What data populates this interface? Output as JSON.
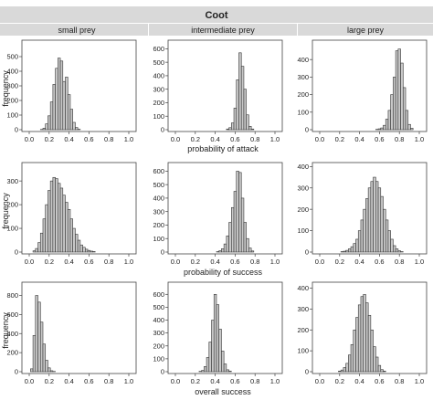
{
  "figure": {
    "title": "Coot",
    "column_labels": [
      "small prey",
      "intermediate prey",
      "large prey"
    ],
    "row_labels": [
      "probability of attack",
      "probability of success",
      "overall success"
    ],
    "ylabel": "frequency",
    "colors": {
      "strip": "#d9d9d9",
      "bar": "#c8c8c8",
      "bar_edge": "#333333",
      "axis": "#444444"
    },
    "grid": false
  },
  "chart_data": [
    {
      "type": "bar",
      "panel": "small prey / probability of attack",
      "xlim": [
        0,
        1
      ],
      "ylim": [
        0,
        600
      ],
      "xticks": [
        0.0,
        0.2,
        0.4,
        0.6,
        0.8,
        1.0
      ],
      "yticks": [
        0,
        100,
        200,
        300,
        400,
        500
      ],
      "bin_width": 0.025,
      "x": [
        0.125,
        0.15,
        0.175,
        0.2,
        0.225,
        0.25,
        0.275,
        0.3,
        0.325,
        0.35,
        0.375,
        0.4,
        0.425,
        0.45,
        0.475,
        0.5
      ],
      "values": [
        2,
        10,
        40,
        95,
        190,
        310,
        420,
        490,
        470,
        330,
        360,
        240,
        140,
        50,
        15,
        3
      ]
    },
    {
      "type": "bar",
      "panel": "intermediate prey / probability of attack",
      "xlim": [
        0,
        1
      ],
      "ylim": [
        0,
        650
      ],
      "xticks": [
        0.0,
        0.2,
        0.4,
        0.6,
        0.8,
        1.0
      ],
      "yticks": [
        0,
        100,
        200,
        300,
        400,
        500,
        600
      ],
      "bin_width": 0.025,
      "x": [
        0.525,
        0.55,
        0.575,
        0.6,
        0.625,
        0.65,
        0.675,
        0.7,
        0.725,
        0.75,
        0.775
      ],
      "values": [
        5,
        15,
        50,
        160,
        370,
        570,
        470,
        300,
        110,
        25,
        5
      ]
    },
    {
      "type": "bar",
      "panel": "large prey / probability of attack",
      "xlim": [
        0,
        1
      ],
      "ylim": [
        0,
        500
      ],
      "xticks": [
        0.0,
        0.2,
        0.4,
        0.6,
        0.8,
        1.0
      ],
      "yticks": [
        0,
        100,
        200,
        300,
        400
      ],
      "bin_width": 0.025,
      "x": [
        0.575,
        0.6,
        0.625,
        0.65,
        0.675,
        0.7,
        0.725,
        0.75,
        0.775,
        0.8,
        0.825,
        0.85,
        0.875,
        0.9,
        0.925
      ],
      "values": [
        2,
        5,
        10,
        25,
        60,
        110,
        200,
        300,
        450,
        460,
        380,
        240,
        110,
        30,
        8
      ]
    },
    {
      "type": "bar",
      "panel": "small prey / probability of success",
      "xlim": [
        0,
        1
      ],
      "ylim": [
        0,
        370
      ],
      "xticks": [
        0.0,
        0.2,
        0.4,
        0.6,
        0.8,
        1.0
      ],
      "yticks": [
        0,
        100,
        200,
        300
      ],
      "bin_width": 0.025,
      "x": [
        0.05,
        0.075,
        0.1,
        0.125,
        0.15,
        0.175,
        0.2,
        0.225,
        0.25,
        0.275,
        0.3,
        0.325,
        0.35,
        0.375,
        0.4,
        0.425,
        0.45,
        0.475,
        0.5,
        0.525,
        0.55,
        0.575,
        0.6,
        0.625,
        0.65
      ],
      "values": [
        5,
        15,
        40,
        80,
        140,
        200,
        260,
        300,
        315,
        310,
        290,
        270,
        240,
        210,
        180,
        140,
        100,
        75,
        50,
        30,
        20,
        12,
        7,
        4,
        2
      ]
    },
    {
      "type": "bar",
      "panel": "intermediate prey / probability of success",
      "xlim": [
        0,
        1
      ],
      "ylim": [
        0,
        650
      ],
      "xticks": [
        0.0,
        0.2,
        0.4,
        0.6,
        0.8,
        1.0
      ],
      "yticks": [
        0,
        100,
        200,
        300,
        400,
        500,
        600
      ],
      "bin_width": 0.025,
      "x": [
        0.425,
        0.45,
        0.475,
        0.5,
        0.525,
        0.55,
        0.575,
        0.6,
        0.625,
        0.65,
        0.675,
        0.7,
        0.725,
        0.75,
        0.775
      ],
      "values": [
        3,
        10,
        25,
        60,
        120,
        220,
        330,
        450,
        600,
        590,
        400,
        220,
        100,
        30,
        8
      ]
    },
    {
      "type": "bar",
      "panel": "large prey / probability of success",
      "xlim": [
        0,
        1
      ],
      "ylim": [
        0,
        410
      ],
      "xticks": [
        0.0,
        0.2,
        0.4,
        0.6,
        0.8,
        1.0
      ],
      "yticks": [
        0,
        100,
        200,
        300,
        400
      ],
      "bin_width": 0.025,
      "x": [
        0.225,
        0.25,
        0.275,
        0.3,
        0.325,
        0.35,
        0.375,
        0.4,
        0.425,
        0.45,
        0.475,
        0.5,
        0.525,
        0.55,
        0.575,
        0.6,
        0.625,
        0.65,
        0.675,
        0.7,
        0.725,
        0.75,
        0.775,
        0.8,
        0.825
      ],
      "values": [
        2,
        4,
        8,
        15,
        25,
        40,
        60,
        100,
        150,
        200,
        250,
        300,
        330,
        350,
        330,
        300,
        260,
        200,
        150,
        100,
        60,
        30,
        15,
        6,
        2
      ]
    },
    {
      "type": "bar",
      "panel": "small prey / overall success",
      "xlim": [
        0,
        1
      ],
      "ylim": [
        0,
        920
      ],
      "xticks": [
        0.0,
        0.2,
        0.4,
        0.6,
        0.8,
        1.0
      ],
      "yticks": [
        0,
        200,
        400,
        600,
        800
      ],
      "bin_width": 0.025,
      "x": [
        0.025,
        0.05,
        0.075,
        0.1,
        0.125,
        0.15,
        0.175,
        0.2,
        0.225,
        0.25
      ],
      "values": [
        30,
        380,
        800,
        730,
        520,
        290,
        120,
        40,
        10,
        3
      ]
    },
    {
      "type": "bar",
      "panel": "intermediate prey / overall success",
      "xlim": [
        0,
        1
      ],
      "ylim": [
        0,
        680
      ],
      "xticks": [
        0.0,
        0.2,
        0.4,
        0.6,
        0.8,
        1.0
      ],
      "yticks": [
        0,
        100,
        200,
        300,
        400,
        500,
        600
      ],
      "bin_width": 0.025,
      "x": [
        0.25,
        0.275,
        0.3,
        0.325,
        0.35,
        0.375,
        0.4,
        0.425,
        0.45,
        0.475,
        0.5,
        0.525,
        0.55
      ],
      "values": [
        3,
        10,
        40,
        110,
        230,
        400,
        600,
        520,
        330,
        160,
        60,
        15,
        4
      ]
    },
    {
      "type": "bar",
      "panel": "large prey / overall success",
      "xlim": [
        0,
        1
      ],
      "ylim": [
        0,
        420
      ],
      "xticks": [
        0.0,
        0.2,
        0.4,
        0.6,
        0.8,
        1.0
      ],
      "yticks": [
        0,
        100,
        200,
        300,
        400
      ],
      "bin_width": 0.025,
      "x": [
        0.2,
        0.225,
        0.25,
        0.275,
        0.3,
        0.325,
        0.35,
        0.375,
        0.4,
        0.425,
        0.45,
        0.475,
        0.5,
        0.525,
        0.55,
        0.575,
        0.6,
        0.625,
        0.65
      ],
      "values": [
        3,
        8,
        20,
        40,
        80,
        130,
        200,
        260,
        320,
        360,
        370,
        330,
        270,
        200,
        120,
        70,
        30,
        10,
        3
      ]
    }
  ]
}
